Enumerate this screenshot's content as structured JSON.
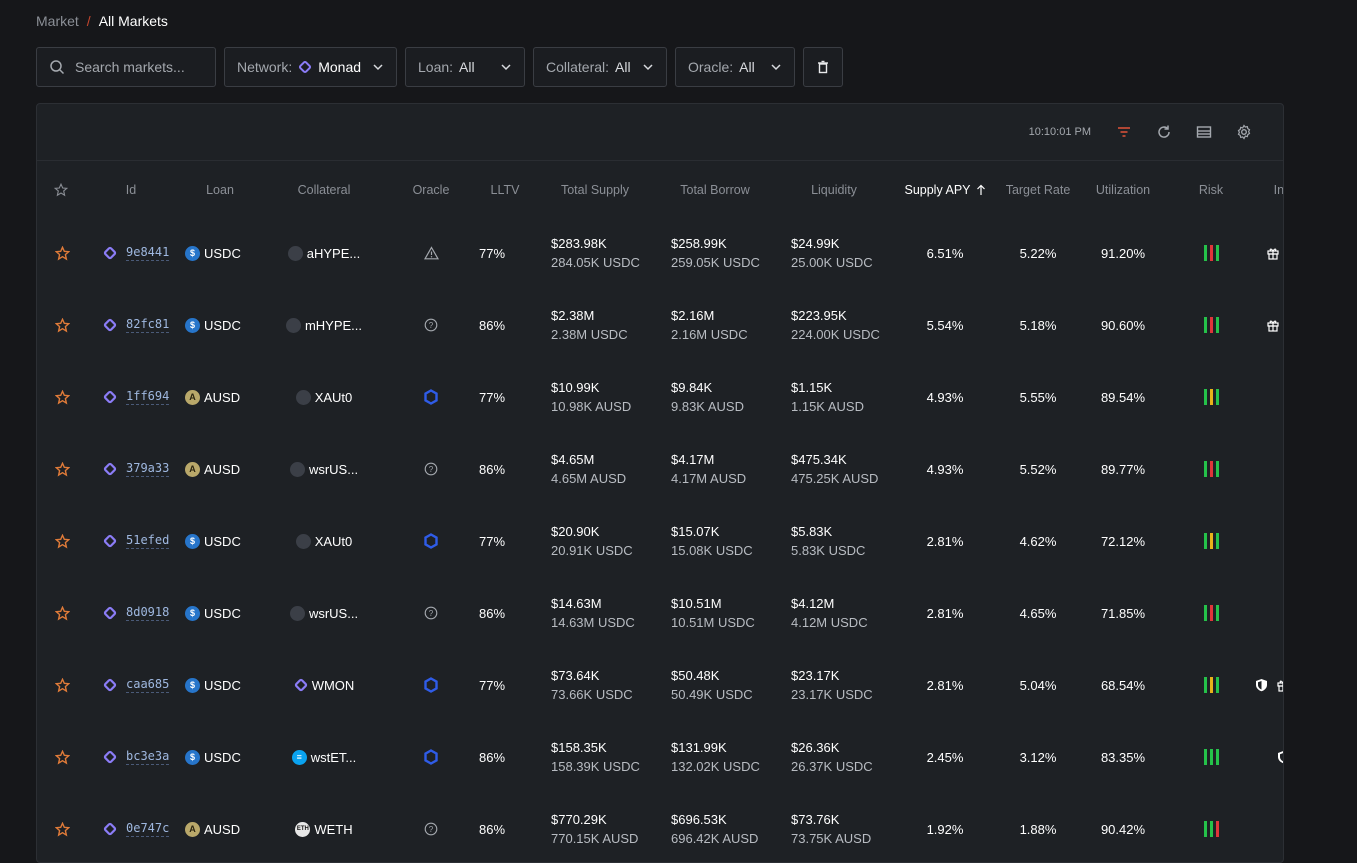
{
  "breadcrumb": {
    "parent": "Market",
    "separator": "/",
    "current": "All Markets"
  },
  "filters": {
    "search_placeholder": "Search markets...",
    "network_label": "Network:",
    "network_value": "Monad",
    "loan_label": "Loan:",
    "loan_value": "All",
    "collateral_label": "Collateral:",
    "collateral_value": "All",
    "oracle_label": "Oracle:",
    "oracle_value": "All"
  },
  "toolbar": {
    "time": "10:10:01 PM"
  },
  "columns": {
    "id": "Id",
    "loan": "Loan",
    "collateral": "Collateral",
    "oracle": "Oracle",
    "lltv": "LLTV",
    "total_supply": "Total Supply",
    "total_borrow": "Total Borrow",
    "liquidity": "Liquidity",
    "supply_apy": "Supply APY",
    "target_rate": "Target Rate",
    "utilization": "Utilization",
    "risk": "Risk",
    "incentives": "Inc"
  },
  "colors": {
    "accent_orange": "#e07b39",
    "monad_purple": "#8b7cf6",
    "risk_green": "#25c24a",
    "risk_red": "#e0353a",
    "risk_yellow": "#e8b21a"
  },
  "rows": [
    {
      "id": "9e8441",
      "loan": "USDC",
      "loan_icon": "usdc",
      "collateral": "aHYPE...",
      "coll_icon": "dark",
      "oracle": "warning-icon",
      "lltv": "77%",
      "supply_usd": "$283.98K",
      "supply_tok": "284.05K USDC",
      "borrow_usd": "$258.99K",
      "borrow_tok": "259.05K USDC",
      "liq_usd": "$24.99K",
      "liq_tok": "25.00K USDC",
      "apy": "6.51%",
      "target": "5.22%",
      "util": "91.20%",
      "risk": [
        "g",
        "r",
        "g"
      ],
      "incentives": [
        "gift-icon"
      ]
    },
    {
      "id": "82fc81",
      "loan": "USDC",
      "loan_icon": "usdc",
      "collateral": "mHYPE...",
      "coll_icon": "dark",
      "oracle": "question-icon",
      "lltv": "86%",
      "supply_usd": "$2.38M",
      "supply_tok": "2.38M USDC",
      "borrow_usd": "$2.16M",
      "borrow_tok": "2.16M USDC",
      "liq_usd": "$223.95K",
      "liq_tok": "224.00K USDC",
      "apy": "5.54%",
      "target": "5.18%",
      "util": "90.60%",
      "risk": [
        "g",
        "r",
        "g"
      ],
      "incentives": [
        "gift-icon"
      ]
    },
    {
      "id": "1ff694",
      "loan": "AUSD",
      "loan_icon": "ausd",
      "collateral": "XAUt0",
      "coll_icon": "dark",
      "oracle": "chainlink-icon",
      "lltv": "77%",
      "supply_usd": "$10.99K",
      "supply_tok": "10.98K AUSD",
      "borrow_usd": "$9.84K",
      "borrow_tok": "9.83K AUSD",
      "liq_usd": "$1.15K",
      "liq_tok": "1.15K AUSD",
      "apy": "4.93%",
      "target": "5.55%",
      "util": "89.54%",
      "risk": [
        "g",
        "y",
        "g"
      ],
      "incentives": []
    },
    {
      "id": "379a33",
      "loan": "AUSD",
      "loan_icon": "ausd",
      "collateral": "wsrUS...",
      "coll_icon": "dark",
      "oracle": "question-icon",
      "lltv": "86%",
      "supply_usd": "$4.65M",
      "supply_tok": "4.65M AUSD",
      "borrow_usd": "$4.17M",
      "borrow_tok": "4.17M AUSD",
      "liq_usd": "$475.34K",
      "liq_tok": "475.25K AUSD",
      "apy": "4.93%",
      "target": "5.52%",
      "util": "89.77%",
      "risk": [
        "g",
        "r",
        "g"
      ],
      "incentives": []
    },
    {
      "id": "51efed",
      "loan": "USDC",
      "loan_icon": "usdc",
      "collateral": "XAUt0",
      "coll_icon": "dark",
      "oracle": "chainlink-icon",
      "lltv": "77%",
      "supply_usd": "$20.90K",
      "supply_tok": "20.91K USDC",
      "borrow_usd": "$15.07K",
      "borrow_tok": "15.08K USDC",
      "liq_usd": "$5.83K",
      "liq_tok": "5.83K USDC",
      "apy": "2.81%",
      "target": "4.62%",
      "util": "72.12%",
      "risk": [
        "g",
        "y",
        "g"
      ],
      "incentives": []
    },
    {
      "id": "8d0918",
      "loan": "USDC",
      "loan_icon": "usdc",
      "collateral": "wsrUS...",
      "coll_icon": "dark",
      "oracle": "question-icon",
      "lltv": "86%",
      "supply_usd": "$14.63M",
      "supply_tok": "14.63M USDC",
      "borrow_usd": "$10.51M",
      "borrow_tok": "10.51M USDC",
      "liq_usd": "$4.12M",
      "liq_tok": "4.12M USDC",
      "apy": "2.81%",
      "target": "4.65%",
      "util": "71.85%",
      "risk": [
        "g",
        "r",
        "g"
      ],
      "incentives": []
    },
    {
      "id": "caa685",
      "loan": "USDC",
      "loan_icon": "usdc",
      "collateral": "WMON",
      "coll_icon": "monad",
      "oracle": "chainlink-icon",
      "lltv": "77%",
      "supply_usd": "$73.64K",
      "supply_tok": "73.66K USDC",
      "borrow_usd": "$50.48K",
      "borrow_tok": "50.49K USDC",
      "liq_usd": "$23.17K",
      "liq_tok": "23.17K USDC",
      "apy": "2.81%",
      "target": "5.04%",
      "util": "68.54%",
      "risk": [
        "g",
        "y",
        "g"
      ],
      "incentives": [
        "shield-icon",
        "gift-icon"
      ]
    },
    {
      "id": "bc3e3a",
      "loan": "USDC",
      "loan_icon": "usdc",
      "collateral": "wstET...",
      "coll_icon": "wst",
      "oracle": "chainlink-icon",
      "lltv": "86%",
      "supply_usd": "$158.35K",
      "supply_tok": "158.39K USDC",
      "borrow_usd": "$131.99K",
      "borrow_tok": "132.02K USDC",
      "liq_usd": "$26.36K",
      "liq_tok": "26.37K USDC",
      "apy": "2.45%",
      "target": "3.12%",
      "util": "83.35%",
      "risk": [
        "g",
        "g",
        "g"
      ],
      "incentives": [
        "shield-icon"
      ]
    },
    {
      "id": "0e747c",
      "loan": "AUSD",
      "loan_icon": "ausd",
      "collateral": "WETH",
      "coll_icon": "weth",
      "oracle": "question-icon",
      "lltv": "86%",
      "supply_usd": "$770.29K",
      "supply_tok": "770.15K AUSD",
      "borrow_usd": "$696.53K",
      "borrow_tok": "696.42K AUSD",
      "liq_usd": "$73.76K",
      "liq_tok": "73.75K AUSD",
      "apy": "1.92%",
      "target": "1.88%",
      "util": "90.42%",
      "risk": [
        "g",
        "g",
        "r"
      ],
      "incentives": []
    }
  ]
}
